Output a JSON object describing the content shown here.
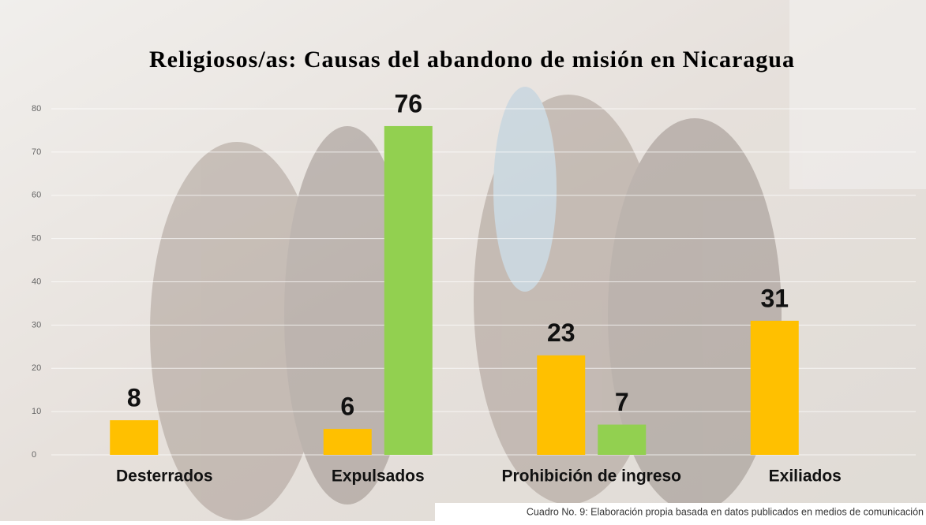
{
  "chart_data": {
    "type": "bar",
    "title": "Religiosos/as: Causas del abandono de misión en Nicaragua",
    "categories": [
      "Desterrados",
      "Expulsados",
      "Prohibición de ingreso",
      "Exiliados"
    ],
    "series": [
      {
        "color": "#ffc000",
        "values": [
          8,
          6,
          23,
          31
        ]
      },
      {
        "color": "#92d050",
        "values": [
          null,
          76,
          7,
          null
        ]
      }
    ],
    "ylim": [
      0,
      80
    ],
    "yticks": [
      0,
      10,
      20,
      30,
      40,
      50,
      60,
      70,
      80
    ],
    "grid": true,
    "note": "Cuadro No. 9: Elaboración propia basada en datos publicados en medios de comunicación"
  }
}
